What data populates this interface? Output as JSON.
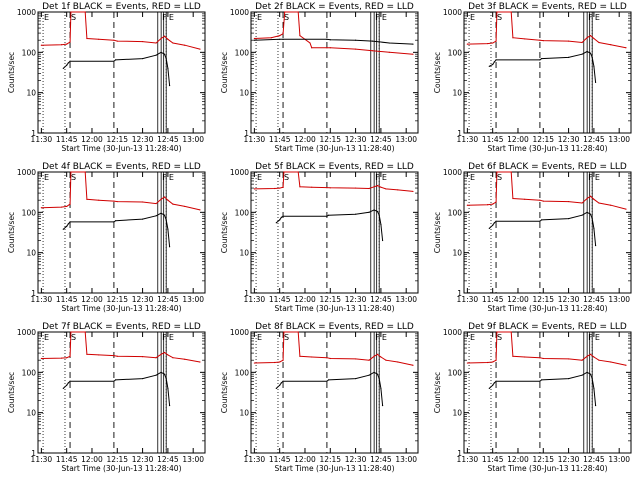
{
  "chart_data": [
    {
      "type": "line",
      "title": "Det 1f BLACK = Events, RED = LLD",
      "xlabel": "Start Time (30-Jun-13 11:28:40)",
      "ylabel": "Counts/sec",
      "x_ticks": [
        "11:30",
        "11:45",
        "12:00",
        "12:15",
        "12:30",
        "12:45",
        "13:00"
      ],
      "y_ticks": [
        "1",
        "10",
        "100",
        "1000"
      ],
      "ylim": [
        1,
        1000
      ],
      "yscale": "log",
      "markers": [
        "E",
        "S",
        "F",
        "E"
      ],
      "series": [
        {
          "color": "#d00000",
          "x": [
            "11:30",
            "11:42",
            "11:45",
            "11:47",
            "11:47.5",
            "11:56",
            "11:57",
            "12:04",
            "12:13",
            "12:15",
            "12:30",
            "12:38",
            "12:41",
            "12:43",
            "12:45",
            "12:48",
            "12:55",
            "13:04"
          ],
          "y": [
            150,
            155,
            160,
            180,
            1000,
            1000,
            220,
            210,
            200,
            190,
            185,
            170,
            220,
            250,
            210,
            170,
            150,
            120
          ]
        },
        {
          "color": "#000000",
          "x": [
            "11:43",
            "11:45",
            "11:46",
            "11:47",
            "12:13",
            "12:14",
            "12:30",
            "12:38",
            "12:41",
            "12:43",
            "12:44",
            "12:45",
            "12:46"
          ],
          "y": [
            40,
            48,
            55,
            60,
            60,
            65,
            70,
            85,
            100,
            90,
            70,
            40,
            15
          ]
        }
      ]
    },
    {
      "type": "line",
      "title": "Det 2f BLACK = Events, RED = LLD",
      "xlabel": "Start Time (30-Jun-13 11:28:40)",
      "ylabel": "Counts/sec",
      "x_ticks": [
        "11:30",
        "11:45",
        "12:00",
        "12:15",
        "12:30",
        "12:45",
        "13:00"
      ],
      "y_ticks": [
        "1",
        "10",
        "100",
        "1000"
      ],
      "ylim": [
        1,
        1000
      ],
      "yscale": "log",
      "markers": [
        "E",
        "S",
        "F",
        "E"
      ],
      "series": [
        {
          "color": "#d00000",
          "x": [
            "11:30",
            "11:40",
            "11:45",
            "11:47",
            "11:48",
            "11:56",
            "11:57",
            "12:03",
            "12:04",
            "12:13",
            "12:15",
            "12:30",
            "12:40",
            "12:50",
            "13:04"
          ],
          "y": [
            220,
            230,
            260,
            290,
            1000,
            1000,
            260,
            170,
            130,
            130,
            130,
            120,
            110,
            100,
            90
          ]
        },
        {
          "color": "#000000",
          "x": [
            "11:30",
            "11:45",
            "11:47",
            "12:13",
            "12:15",
            "12:30",
            "12:40",
            "12:50",
            "13:04"
          ],
          "y": [
            200,
            210,
            210,
            210,
            205,
            200,
            190,
            170,
            160
          ]
        }
      ]
    },
    {
      "type": "line",
      "title": "Det 3f BLACK = Events, RED = LLD",
      "xlabel": "Start Time (30-Jun-13 11:28:40)",
      "ylabel": "Counts/sec",
      "x_ticks": [
        "11:30",
        "11:45",
        "12:00",
        "12:15",
        "12:30",
        "12:45",
        "13:00"
      ],
      "y_ticks": [
        "1",
        "10",
        "100",
        "1000"
      ],
      "ylim": [
        1,
        1000
      ],
      "yscale": "log",
      "markers": [
        "E",
        "S",
        "F",
        "E"
      ],
      "series": [
        {
          "color": "#d00000",
          "x": [
            "11:30",
            "11:42",
            "11:45",
            "11:47",
            "11:47.5",
            "11:56",
            "11:57",
            "12:04",
            "12:13",
            "12:15",
            "12:30",
            "12:38",
            "12:41",
            "12:43",
            "12:45",
            "12:48",
            "12:55",
            "13:04"
          ],
          "y": [
            160,
            165,
            170,
            190,
            1000,
            1000,
            230,
            215,
            200,
            195,
            190,
            175,
            230,
            260,
            220,
            175,
            155,
            130
          ]
        },
        {
          "color": "#000000",
          "x": [
            "11:43",
            "11:45",
            "11:46",
            "11:47",
            "12:13",
            "12:14",
            "12:30",
            "12:38",
            "12:41",
            "12:43",
            "12:44",
            "12:45",
            "12:46"
          ],
          "y": [
            45,
            50,
            58,
            65,
            65,
            70,
            75,
            90,
            105,
            95,
            75,
            45,
            18
          ]
        }
      ]
    },
    {
      "type": "line",
      "title": "Det 4f BLACK = Events, RED = LLD",
      "xlabel": "Start Time (30-Jun-13 11:28:40)",
      "ylabel": "Counts/sec",
      "x_ticks": [
        "11:30",
        "11:45",
        "12:00",
        "12:15",
        "12:30",
        "12:45",
        "13:00"
      ],
      "y_ticks": [
        "1",
        "10",
        "100",
        "1000"
      ],
      "ylim": [
        1,
        1000
      ],
      "yscale": "log",
      "markers": [
        "E",
        "S",
        "F",
        "E"
      ],
      "series": [
        {
          "color": "#d00000",
          "x": [
            "11:30",
            "11:42",
            "11:45",
            "11:47",
            "11:47.5",
            "11:56",
            "11:57",
            "12:04",
            "12:13",
            "12:15",
            "12:30",
            "12:38",
            "12:41",
            "12:43",
            "12:45",
            "12:48",
            "12:55",
            "13:04"
          ],
          "y": [
            130,
            135,
            140,
            160,
            1000,
            1000,
            210,
            200,
            190,
            185,
            180,
            165,
            210,
            240,
            200,
            160,
            140,
            115
          ]
        },
        {
          "color": "#000000",
          "x": [
            "11:43",
            "11:45",
            "11:46",
            "11:47",
            "12:13",
            "12:14",
            "12:30",
            "12:38",
            "12:41",
            "12:43",
            "12:44",
            "12:45",
            "12:46"
          ],
          "y": [
            38,
            45,
            52,
            58,
            58,
            62,
            68,
            82,
            95,
            85,
            65,
            38,
            14
          ]
        }
      ]
    },
    {
      "type": "line",
      "title": "Det 5f BLACK = Events, RED = LLD",
      "xlabel": "Start Time (30-Jun-13 11:28:40)",
      "ylabel": "Counts/sec",
      "x_ticks": [
        "11:30",
        "11:45",
        "12:00",
        "12:15",
        "12:30",
        "12:45",
        "13:00"
      ],
      "y_ticks": [
        "1",
        "10",
        "100",
        "1000"
      ],
      "ylim": [
        1,
        1000
      ],
      "yscale": "log",
      "markers": [
        "E",
        "S",
        "F",
        "E"
      ],
      "series": [
        {
          "color": "#d00000",
          "x": [
            "11:30",
            "11:42",
            "11:45",
            "11:47",
            "11:47.5",
            "11:56",
            "11:57",
            "12:04",
            "12:13",
            "12:15",
            "12:30",
            "12:38",
            "12:41",
            "12:43",
            "12:45",
            "12:48",
            "12:55",
            "13:04"
          ],
          "y": [
            380,
            390,
            400,
            420,
            1000,
            1000,
            430,
            420,
            410,
            405,
            400,
            390,
            430,
            460,
            420,
            380,
            360,
            330
          ]
        },
        {
          "color": "#000000",
          "x": [
            "11:43",
            "11:45",
            "11:46",
            "11:47",
            "12:13",
            "12:14",
            "12:30",
            "12:38",
            "12:41",
            "12:43",
            "12:44",
            "12:45",
            "12:46"
          ],
          "y": [
            55,
            65,
            75,
            80,
            80,
            85,
            90,
            100,
            115,
            105,
            85,
            50,
            20
          ]
        }
      ]
    },
    {
      "type": "line",
      "title": "Det 6f BLACK = Events, RED = LLD",
      "xlabel": "Start Time (30-Jun-13 11:28:40)",
      "ylabel": "Counts/sec",
      "x_ticks": [
        "11:30",
        "11:45",
        "12:00",
        "12:15",
        "12:30",
        "12:45",
        "13:00"
      ],
      "y_ticks": [
        "1",
        "10",
        "100",
        "1000"
      ],
      "ylim": [
        1,
        1000
      ],
      "yscale": "log",
      "markers": [
        "E",
        "S",
        "F",
        "E"
      ],
      "series": [
        {
          "color": "#d00000",
          "x": [
            "11:30",
            "11:42",
            "11:45",
            "11:47",
            "11:47.5",
            "11:56",
            "11:57",
            "12:04",
            "12:13",
            "12:15",
            "12:30",
            "12:38",
            "12:41",
            "12:43",
            "12:45",
            "12:48",
            "12:55",
            "13:04"
          ],
          "y": [
            150,
            155,
            160,
            180,
            1000,
            1000,
            220,
            210,
            200,
            190,
            185,
            170,
            220,
            250,
            210,
            170,
            150,
            120
          ]
        },
        {
          "color": "#000000",
          "x": [
            "11:43",
            "11:45",
            "11:46",
            "11:47",
            "12:13",
            "12:14",
            "12:30",
            "12:38",
            "12:41",
            "12:43",
            "12:44",
            "12:45",
            "12:46"
          ],
          "y": [
            40,
            48,
            55,
            60,
            60,
            65,
            70,
            85,
            100,
            90,
            70,
            40,
            15
          ]
        }
      ]
    },
    {
      "type": "line",
      "title": "Det 7f BLACK = Events, RED = LLD",
      "xlabel": "Start Time (30-Jun-13 11:28:40)",
      "ylabel": "Counts/sec",
      "x_ticks": [
        "11:30",
        "11:45",
        "12:00",
        "12:15",
        "12:30",
        "12:45",
        "13:00"
      ],
      "y_ticks": [
        "1",
        "10",
        "100",
        "1000"
      ],
      "ylim": [
        1,
        1000
      ],
      "yscale": "log",
      "markers": [
        "E",
        "S",
        "F",
        "E"
      ],
      "series": [
        {
          "color": "#d00000",
          "x": [
            "11:30",
            "11:42",
            "11:45",
            "11:47",
            "11:47.5",
            "11:56",
            "11:57",
            "12:04",
            "12:13",
            "12:15",
            "12:30",
            "12:38",
            "12:41",
            "12:43",
            "12:45",
            "12:48",
            "12:55",
            "13:04"
          ],
          "y": [
            220,
            225,
            230,
            250,
            1000,
            1000,
            280,
            270,
            260,
            250,
            245,
            230,
            280,
            310,
            270,
            230,
            210,
            180
          ]
        },
        {
          "color": "#000000",
          "x": [
            "11:43",
            "11:45",
            "11:46",
            "11:47",
            "12:13",
            "12:14",
            "12:30",
            "12:38",
            "12:41",
            "12:43",
            "12:44",
            "12:45",
            "12:46"
          ],
          "y": [
            40,
            48,
            55,
            60,
            60,
            65,
            70,
            85,
            100,
            90,
            70,
            40,
            15
          ]
        }
      ]
    },
    {
      "type": "line",
      "title": "Det 8f BLACK = Events, RED = LLD",
      "xlabel": "Start Time (30-Jun-13 11:28:40)",
      "ylabel": "Counts/sec",
      "x_ticks": [
        "11:30",
        "11:45",
        "12:00",
        "12:15",
        "12:30",
        "12:45",
        "13:00"
      ],
      "y_ticks": [
        "1",
        "10",
        "100",
        "1000"
      ],
      "ylim": [
        1,
        1000
      ],
      "yscale": "log",
      "markers": [
        "E",
        "S",
        "F",
        "E"
      ],
      "series": [
        {
          "color": "#d00000",
          "x": [
            "11:30",
            "11:42",
            "11:45",
            "11:47",
            "11:47.5",
            "11:56",
            "11:57",
            "12:04",
            "12:13",
            "12:15",
            "12:30",
            "12:38",
            "12:41",
            "12:43",
            "12:45",
            "12:48",
            "12:55",
            "13:04"
          ],
          "y": [
            170,
            175,
            180,
            200,
            1000,
            1000,
            250,
            240,
            230,
            220,
            215,
            200,
            250,
            280,
            240,
            200,
            180,
            150
          ]
        },
        {
          "color": "#000000",
          "x": [
            "11:43",
            "11:45",
            "11:46",
            "11:47",
            "12:13",
            "12:14",
            "12:30",
            "12:38",
            "12:41",
            "12:43",
            "12:44",
            "12:45",
            "12:46"
          ],
          "y": [
            40,
            48,
            55,
            60,
            60,
            65,
            70,
            85,
            100,
            90,
            70,
            40,
            15
          ]
        }
      ]
    },
    {
      "type": "line",
      "title": "Det 9f BLACK = Events, RED = LLD",
      "xlabel": "Start Time (30-Jun-13 11:28:40)",
      "ylabel": "Counts/sec",
      "x_ticks": [
        "11:30",
        "11:45",
        "12:00",
        "12:15",
        "12:30",
        "12:45",
        "13:00"
      ],
      "y_ticks": [
        "1",
        "10",
        "100",
        "1000"
      ],
      "ylim": [
        1,
        1000
      ],
      "yscale": "log",
      "markers": [
        "E",
        "S",
        "F",
        "E"
      ],
      "series": [
        {
          "color": "#d00000",
          "x": [
            "11:30",
            "11:42",
            "11:45",
            "11:47",
            "11:47.5",
            "11:56",
            "11:57",
            "12:04",
            "12:13",
            "12:15",
            "12:30",
            "12:38",
            "12:41",
            "12:43",
            "12:45",
            "12:48",
            "12:55",
            "13:04"
          ],
          "y": [
            170,
            175,
            180,
            200,
            1000,
            1000,
            250,
            240,
            230,
            220,
            215,
            200,
            250,
            280,
            240,
            200,
            180,
            150
          ]
        },
        {
          "color": "#000000",
          "x": [
            "11:43",
            "11:45",
            "11:46",
            "11:47",
            "12:13",
            "12:14",
            "12:30",
            "12:38",
            "12:41",
            "12:43",
            "12:44",
            "12:45",
            "12:46"
          ],
          "y": [
            40,
            48,
            55,
            60,
            60,
            65,
            70,
            85,
            100,
            90,
            70,
            40,
            15
          ]
        }
      ]
    }
  ]
}
